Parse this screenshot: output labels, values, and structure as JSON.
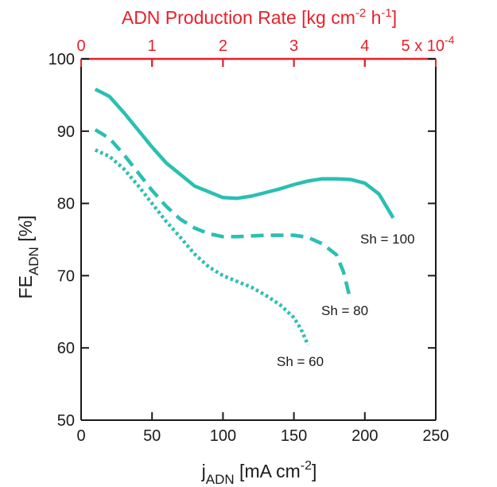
{
  "chart_data": {
    "type": "line",
    "title": "",
    "x_axis": {
      "label_main": "j",
      "label_sub": "ADN",
      "label_rest": " [mA cm",
      "label_sup": "-2",
      "label_end": "]",
      "range": [
        0,
        250
      ],
      "ticks": [
        0,
        50,
        100,
        150,
        200,
        250
      ],
      "tick_labels": [
        "0",
        "50",
        "100",
        "150",
        "200",
        "250"
      ]
    },
    "y_axis": {
      "label_main": "FE",
      "label_sub": "ADN",
      "label_rest": " [%]",
      "range": [
        50,
        100
      ],
      "ticks": [
        50,
        60,
        70,
        80,
        90,
        100
      ],
      "tick_labels": [
        "50",
        "60",
        "70",
        "80",
        "90",
        "100"
      ]
    },
    "top_axis": {
      "label_a": "ADN Production Rate [kg cm",
      "label_sup1": "-2",
      "label_b": " h",
      "label_sup2": "-1",
      "label_c": "]",
      "range": [
        0,
        5
      ],
      "ticks": [
        0,
        1,
        2,
        3,
        4,
        5
      ],
      "tick_labels": [
        "0",
        "1",
        "2",
        "3",
        "4",
        "5 x 10"
      ],
      "scale_exponent": "-4",
      "color": "#e8202a"
    },
    "grid": false,
    "series_color": "#2bbfb3",
    "series": [
      {
        "name": "Sh = 100",
        "style": "solid",
        "x": [
          10,
          20,
          30,
          40,
          50,
          60,
          70,
          80,
          90,
          100,
          110,
          120,
          130,
          140,
          150,
          160,
          170,
          180,
          190,
          200,
          210,
          220
        ],
        "y": [
          95.8,
          94.8,
          92.6,
          90.2,
          87.8,
          85.6,
          84.0,
          82.4,
          81.6,
          80.8,
          80.7,
          81.0,
          81.5,
          82.0,
          82.6,
          83.1,
          83.4,
          83.4,
          83.3,
          82.8,
          81.3,
          78.0
        ]
      },
      {
        "name": "Sh = 80",
        "style": "dashed",
        "x": [
          10,
          20,
          30,
          40,
          50,
          60,
          70,
          80,
          90,
          100,
          110,
          120,
          130,
          140,
          150,
          160,
          170,
          180,
          185,
          190
        ],
        "y": [
          90.2,
          89.0,
          86.8,
          84.3,
          81.8,
          79.6,
          77.8,
          76.6,
          75.8,
          75.4,
          75.4,
          75.5,
          75.6,
          75.6,
          75.6,
          75.3,
          74.4,
          72.9,
          70.5,
          66.5
        ]
      },
      {
        "name": "Sh = 60",
        "style": "dotted",
        "x": [
          10,
          20,
          30,
          40,
          50,
          60,
          70,
          80,
          90,
          100,
          110,
          120,
          130,
          140,
          150,
          155,
          160
        ],
        "y": [
          87.4,
          86.5,
          84.8,
          82.5,
          80.0,
          77.5,
          75.3,
          73.0,
          71.2,
          70.0,
          69.2,
          68.4,
          67.3,
          66.0,
          64.2,
          62.6,
          60.4
        ]
      }
    ],
    "annotations": [
      {
        "text": "Sh = 100",
        "series": "Sh = 100"
      },
      {
        "text": "Sh = 80",
        "series": "Sh = 80"
      },
      {
        "text": "Sh = 60",
        "series": "Sh = 60"
      }
    ]
  }
}
